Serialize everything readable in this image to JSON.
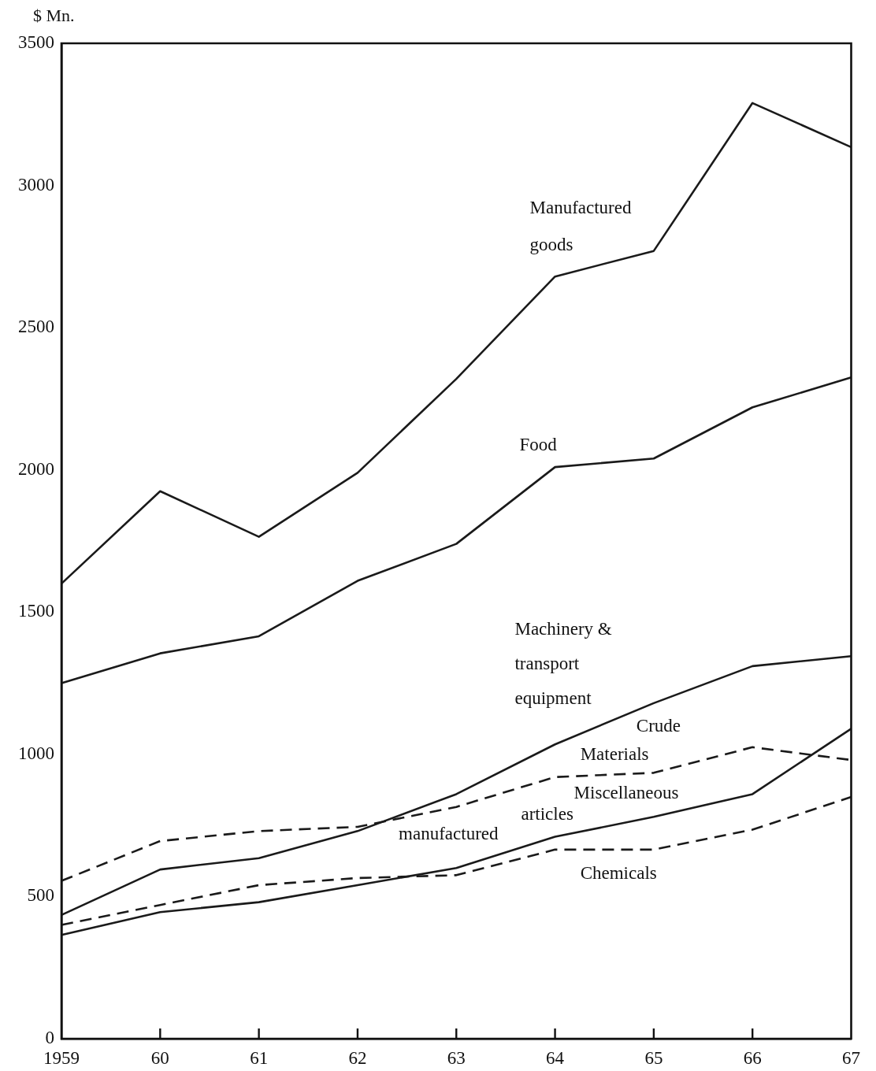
{
  "chart_data": {
    "type": "line",
    "ylabel": "$ Mn.",
    "marker": "none",
    "categories": [
      "1959",
      "60",
      "61",
      "62",
      "63",
      "64",
      "65",
      "66",
      "67"
    ],
    "series": [
      {
        "name": "Manufactured\ngoods",
        "color": "#1a1a1a",
        "line_style": "solid",
        "values": [
          1600,
          1925,
          1765,
          1990,
          2320,
          2680,
          2770,
          3290,
          3135
        ]
      },
      {
        "name": "Food",
        "color": "#1a1a1a",
        "line_style": "solid",
        "values": [
          1250,
          1355,
          1415,
          1610,
          1740,
          2010,
          2040,
          2220,
          2325
        ]
      },
      {
        "name": "Machinery &\ntransport\nequipment",
        "color": "#1a1a1a",
        "line_style": "solid",
        "values": [
          435,
          595,
          635,
          730,
          860,
          1035,
          1180,
          1310,
          1345
        ]
      },
      {
        "name": "Crude\nMaterials",
        "color": "#1a1a1a",
        "line_style": "dashed",
        "values": [
          555,
          695,
          730,
          745,
          815,
          920,
          935,
          1025,
          980
        ]
      },
      {
        "name": "Miscellaneous\narticles\nmanufactured",
        "color": "#1a1a1a",
        "line_style": "solid",
        "values": [
          365,
          445,
          480,
          540,
          600,
          710,
          780,
          860,
          1090
        ]
      },
      {
        "name": "Chemicals",
        "color": "#1a1a1a",
        "line_style": "dashed",
        "values": [
          400,
          470,
          540,
          565,
          575,
          665,
          665,
          735,
          850
        ]
      }
    ],
    "ylim": [
      0,
      3500
    ],
    "yticks": [
      0,
      500,
      1000,
      1500,
      2000,
      2500,
      3000,
      3500
    ]
  }
}
